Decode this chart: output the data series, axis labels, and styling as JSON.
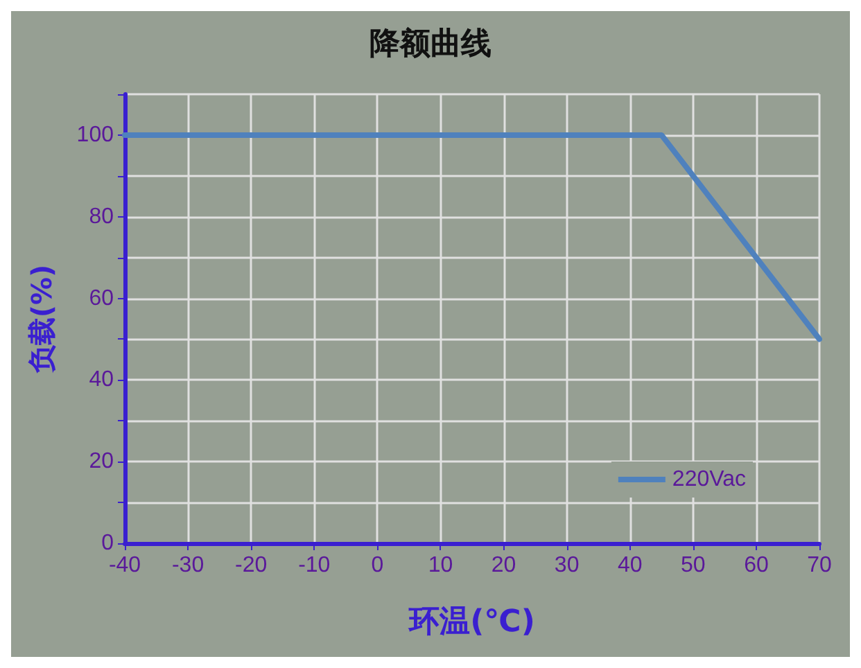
{
  "chart_data": {
    "type": "line",
    "title": "降额曲线",
    "xlabel": "环温(℃)",
    "ylabel": "负载(%)",
    "x": [
      -40,
      45,
      70
    ],
    "series": [
      {
        "name": "220Vac",
        "color": "#4f81bd",
        "values": [
          100,
          100,
          50
        ]
      }
    ],
    "xlim": [
      -40,
      70
    ],
    "xticks": [
      -40,
      -30,
      -20,
      -10,
      0,
      10,
      20,
      30,
      40,
      50,
      60,
      70
    ],
    "ylim": [
      0,
      110
    ],
    "yticks": [
      0,
      {
        "value": 10,
        "label": null
      },
      20,
      {
        "value": 30,
        "label": null
      },
      40,
      {
        "value": 50,
        "label": null
      },
      60,
      {
        "value": 70,
        "label": null
      },
      80,
      {
        "value": 90,
        "label": null
      },
      100,
      {
        "value": 110,
        "label": null
      }
    ],
    "grid": true,
    "legend": "bottom right",
    "marker": "none",
    "line_style": "solid"
  }
}
